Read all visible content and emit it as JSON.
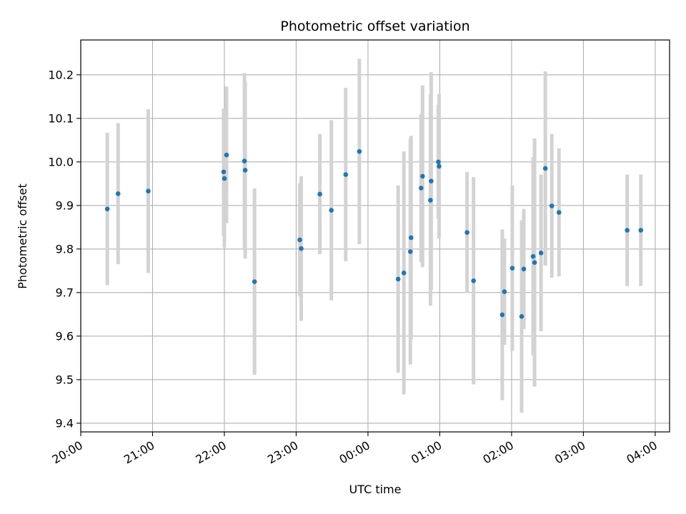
{
  "chart_data": {
    "type": "scatter",
    "title": "Photometric offset variation",
    "xlabel": "UTC time",
    "ylabel": "Photometric offset",
    "grid": true,
    "x_unit": "hours since 20:00 UTC",
    "xlim": [
      0,
      8.2
    ],
    "ylim": [
      9.38,
      10.28
    ],
    "x_ticks": [
      {
        "value": 0,
        "label": "20:00"
      },
      {
        "value": 1,
        "label": "21:00"
      },
      {
        "value": 2,
        "label": "22:00"
      },
      {
        "value": 3,
        "label": "23:00"
      },
      {
        "value": 4,
        "label": "00:00"
      },
      {
        "value": 5,
        "label": "01:00"
      },
      {
        "value": 6,
        "label": "02:00"
      },
      {
        "value": 7,
        "label": "03:00"
      },
      {
        "value": 8,
        "label": "04:00"
      }
    ],
    "y_ticks": [
      {
        "value": 9.4,
        "label": "9.4"
      },
      {
        "value": 9.5,
        "label": "9.5"
      },
      {
        "value": 9.6,
        "label": "9.6"
      },
      {
        "value": 9.7,
        "label": "9.7"
      },
      {
        "value": 9.8,
        "label": "9.8"
      },
      {
        "value": 9.9,
        "label": "9.9"
      },
      {
        "value": 10.0,
        "label": "10.0"
      },
      {
        "value": 10.1,
        "label": "10.1"
      },
      {
        "value": 10.2,
        "label": "10.2"
      }
    ],
    "point_color": "#1f77b4",
    "errorbar_color": "#d3d3d3",
    "points": [
      {
        "x": 0.37,
        "y": 9.892,
        "err": 0.175
      },
      {
        "x": 0.52,
        "y": 9.927,
        "err": 0.162
      },
      {
        "x": 0.94,
        "y": 9.933,
        "err": 0.188
      },
      {
        "x": 1.99,
        "y": 9.977,
        "err": 0.146
      },
      {
        "x": 2.0,
        "y": 9.962,
        "err": 0.159
      },
      {
        "x": 2.03,
        "y": 10.016,
        "err": 0.157
      },
      {
        "x": 2.28,
        "y": 10.002,
        "err": 0.202
      },
      {
        "x": 2.29,
        "y": 9.981,
        "err": 0.203
      },
      {
        "x": 2.42,
        "y": 9.725,
        "err": 0.214
      },
      {
        "x": 3.05,
        "y": 9.821,
        "err": 0.13
      },
      {
        "x": 3.07,
        "y": 9.801,
        "err": 0.166
      },
      {
        "x": 3.33,
        "y": 9.926,
        "err": 0.138
      },
      {
        "x": 3.49,
        "y": 9.889,
        "err": 0.207
      },
      {
        "x": 3.69,
        "y": 9.971,
        "err": 0.199
      },
      {
        "x": 3.88,
        "y": 10.024,
        "err": 0.213
      },
      {
        "x": 4.42,
        "y": 9.731,
        "err": 0.215
      },
      {
        "x": 4.5,
        "y": 9.745,
        "err": 0.279
      },
      {
        "x": 4.59,
        "y": 9.794,
        "err": 0.259
      },
      {
        "x": 4.6,
        "y": 9.826,
        "err": 0.234
      },
      {
        "x": 4.74,
        "y": 9.94,
        "err": 0.17
      },
      {
        "x": 4.76,
        "y": 9.967,
        "err": 0.209
      },
      {
        "x": 4.87,
        "y": 9.912,
        "err": 0.242
      },
      {
        "x": 4.88,
        "y": 9.956,
        "err": 0.25
      },
      {
        "x": 4.98,
        "y": 10.0,
        "err": 0.131
      },
      {
        "x": 4.99,
        "y": 9.99,
        "err": 0.166
      },
      {
        "x": 5.38,
        "y": 9.838,
        "err": 0.139
      },
      {
        "x": 5.47,
        "y": 9.727,
        "err": 0.238
      },
      {
        "x": 5.87,
        "y": 9.649,
        "err": 0.196
      },
      {
        "x": 5.9,
        "y": 9.702,
        "err": 0.122
      },
      {
        "x": 6.01,
        "y": 9.756,
        "err": 0.19
      },
      {
        "x": 6.14,
        "y": 9.645,
        "err": 0.221
      },
      {
        "x": 6.17,
        "y": 9.754,
        "err": 0.138
      },
      {
        "x": 6.3,
        "y": 9.783,
        "err": 0.228
      },
      {
        "x": 6.32,
        "y": 9.769,
        "err": 0.285
      },
      {
        "x": 6.41,
        "y": 9.791,
        "err": 0.18
      },
      {
        "x": 6.47,
        "y": 9.985,
        "err": 0.223
      },
      {
        "x": 6.56,
        "y": 9.899,
        "err": 0.165
      },
      {
        "x": 6.66,
        "y": 9.884,
        "err": 0.147
      },
      {
        "x": 7.61,
        "y": 9.843,
        "err": 0.128
      },
      {
        "x": 7.8,
        "y": 9.843,
        "err": 0.128
      }
    ]
  }
}
